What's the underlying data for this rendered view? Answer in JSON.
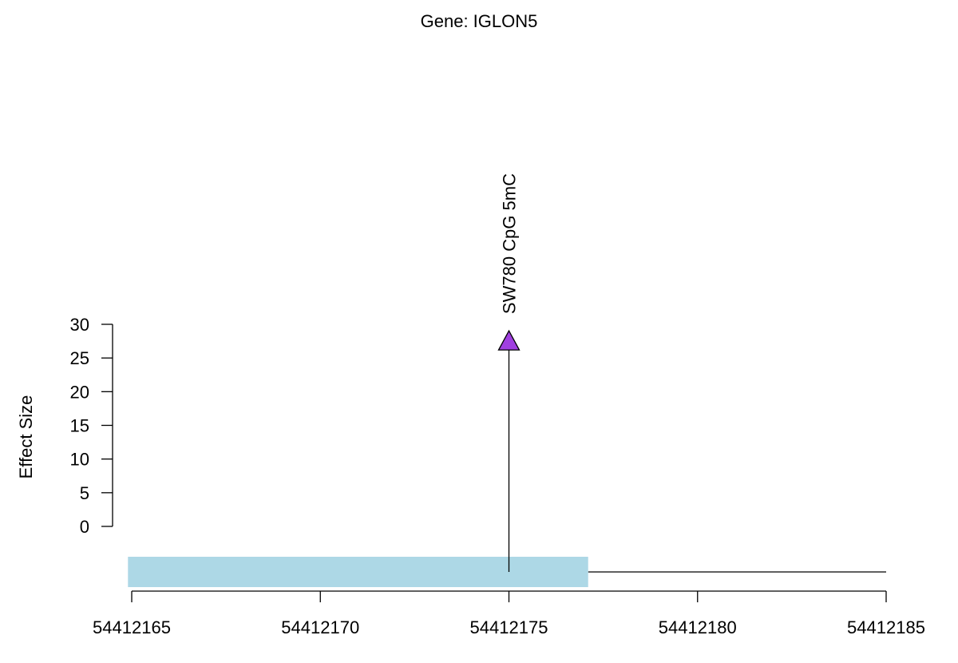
{
  "chart_data": {
    "type": "lollipop",
    "title": "Gene: IGLON5",
    "xlabel": "",
    "ylabel": "Effect Size",
    "xlim": [
      54412165,
      54412185
    ],
    "ylim": [
      0,
      30
    ],
    "x_ticks": [
      54412165,
      54412170,
      54412175,
      54412180,
      54412185
    ],
    "y_ticks": [
      0,
      5,
      10,
      15,
      20,
      25,
      30
    ],
    "points": [
      {
        "x": 54412175,
        "y": 27.5,
        "label": "SW780 CpG 5mC",
        "color": "#A040E0",
        "marker": "triangle"
      }
    ],
    "gene_track": {
      "exon": {
        "start": 54412164.9,
        "end": 54412177.1,
        "color": "#ADD8E6"
      },
      "intron": {
        "start": 54412177.1,
        "end": 54412185
      }
    }
  }
}
